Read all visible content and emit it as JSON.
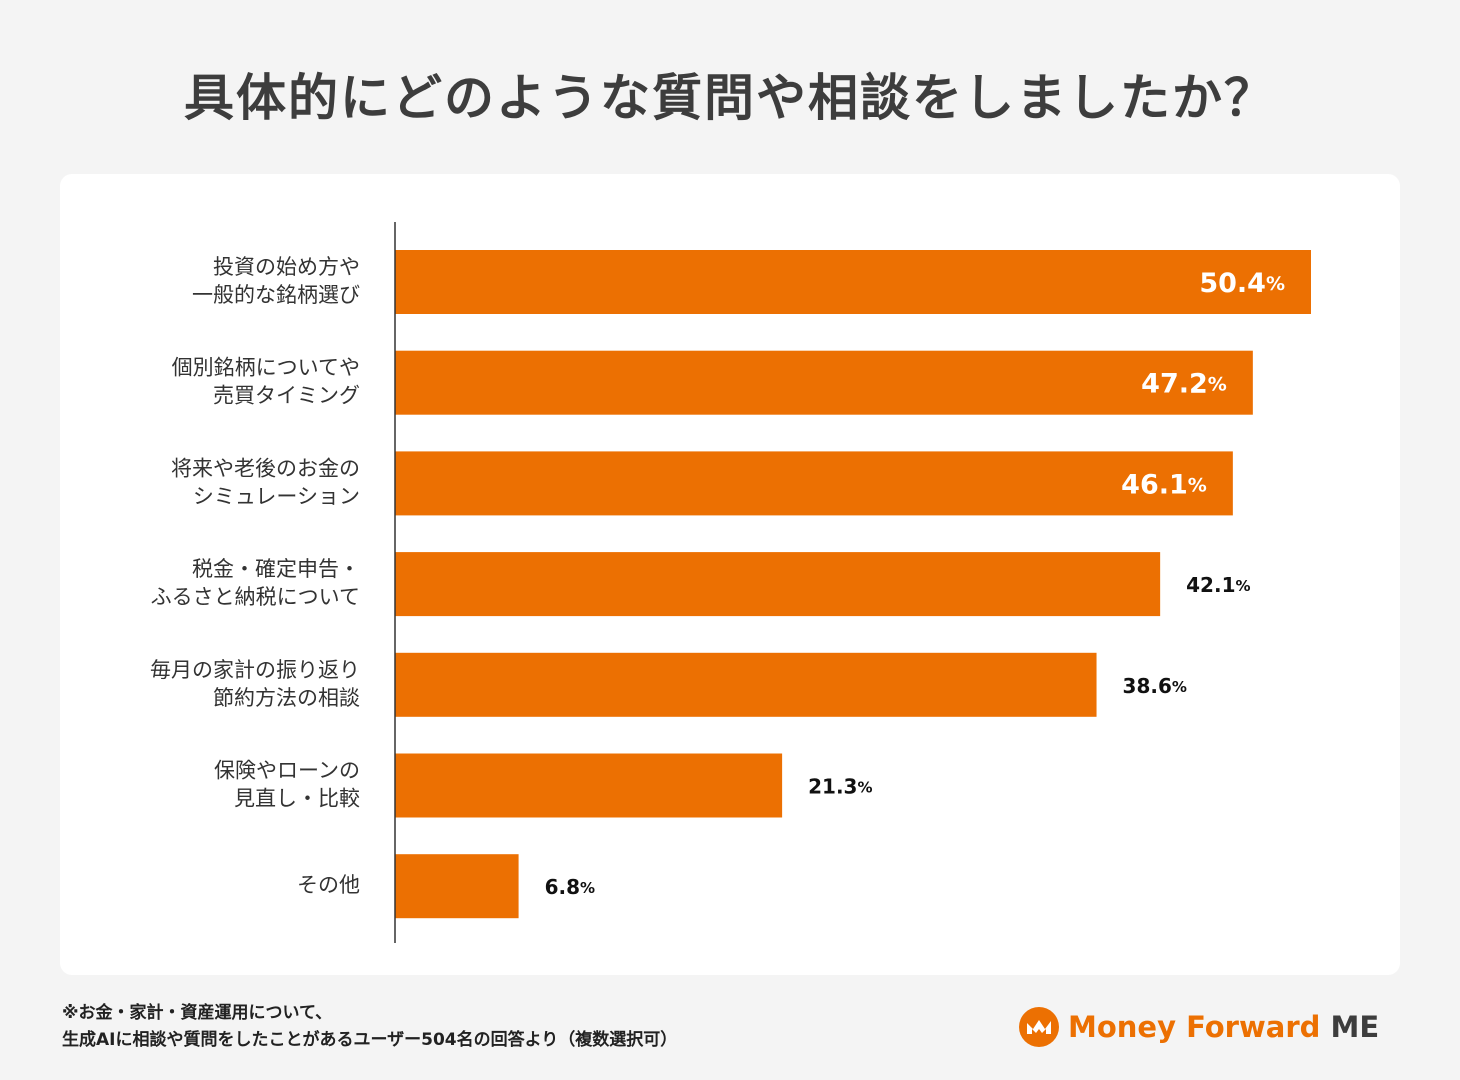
{
  "title": "具体的にどのような質問や相談をしましたか？",
  "chart_data": {
    "type": "bar",
    "orientation": "horizontal",
    "categories": [
      [
        "投資の始め方や",
        "一般的な銘柄選び"
      ],
      [
        "個別銘柄についてや",
        "売買タイミング"
      ],
      [
        "将来や老後のお金の",
        "シミュレーション"
      ],
      [
        "税金・確定申告・",
        "ふるさと納税について"
      ],
      [
        "毎月の家計の振り返り",
        "節約方法の相談"
      ],
      [
        "保険やローンの",
        "見直し・比較"
      ],
      [
        "その他"
      ]
    ],
    "values": [
      50.4,
      47.2,
      46.1,
      42.1,
      38.6,
      21.3,
      6.8
    ],
    "value_labels": [
      "50.4",
      "47.2",
      "46.1",
      "42.1",
      "38.6",
      "21.3",
      "6.8"
    ],
    "unit": "%",
    "grid": false,
    "legend": "none",
    "bar_color": "#ec7002"
  },
  "footnote": [
    "※お金・家計・資産運用について、",
    "生成AIに相談や質問をしたことがあるユーザー504名の回答より（複数選択可）"
  ],
  "brand": {
    "name_part1": "Money Forward",
    "name_part2": "ME",
    "accent": "#ec7002",
    "text_color": "#3d3d3d"
  }
}
